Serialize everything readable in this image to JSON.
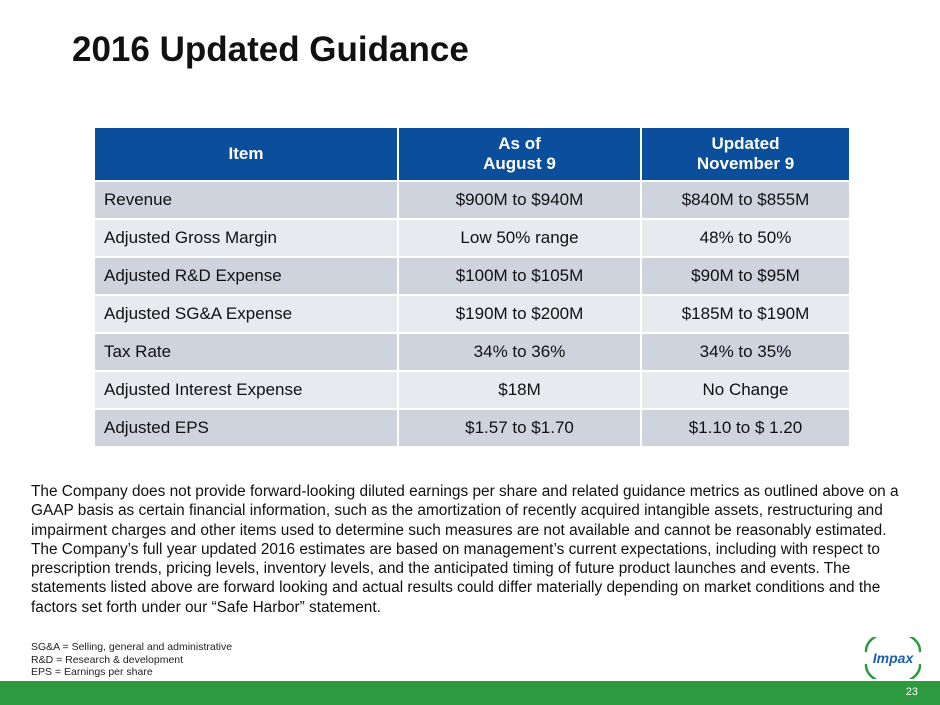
{
  "slide": {
    "title": "2016 Updated Guidance",
    "page_number": "23"
  },
  "table": {
    "headers": [
      {
        "lines": [
          "Item"
        ]
      },
      {
        "lines": [
          "As of",
          "August 9"
        ]
      },
      {
        "lines": [
          "Updated",
          "November 9"
        ]
      }
    ],
    "rows": [
      {
        "item": "Revenue",
        "aug9": "$900M to $940M",
        "nov9": "$840M to $855M"
      },
      {
        "item": "Adjusted Gross Margin",
        "aug9": "Low 50% range",
        "nov9": "48% to 50%"
      },
      {
        "item": "Adjusted R&D Expense",
        "aug9": "$100M to $105M",
        "nov9": "$90M to $95M"
      },
      {
        "item": "Adjusted SG&A Expense",
        "aug9": "$190M to $200M",
        "nov9": "$185M to $190M"
      },
      {
        "item": "Tax Rate",
        "aug9": "34% to 36%",
        "nov9": "34% to 35%"
      },
      {
        "item": "Adjusted Interest Expense",
        "aug9": "$18M",
        "nov9": "No Change"
      },
      {
        "item": "Adjusted EPS",
        "aug9": "$1.57 to $1.70",
        "nov9": "$1.10 to $ 1.20"
      }
    ]
  },
  "disclaimer": "The Company does not provide forward-looking diluted earnings per share and related guidance metrics as outlined above on a GAAP basis as certain financial information, such as the amortization of recently acquired intangible assets, restructuring and impairment charges and other items used to determine such measures are not available and cannot be reasonably estimated. The Company’s full year updated 2016 estimates are based on management’s current expectations, including with respect to prescription trends, pricing levels, inventory levels, and the anticipated timing of future product launches and events. The statements listed above are forward looking and actual results could differ materially depending on market conditions and the factors set forth under our “Safe Harbor” statement.",
  "footnotes": [
    "SG&A = Selling, general and administrative",
    "R&D = Research & development",
    "EPS = Earnings per share"
  ],
  "logo": {
    "text": "Impax",
    "icon": "impax-logo"
  },
  "colors": {
    "header_blue": "#0b4f9c",
    "row_dark": "#cfd3de",
    "row_light": "#e8eaf0",
    "footer_green": "#2e9a3f",
    "logo_blue": "#1d5fae",
    "logo_green": "#2e9a3f"
  }
}
